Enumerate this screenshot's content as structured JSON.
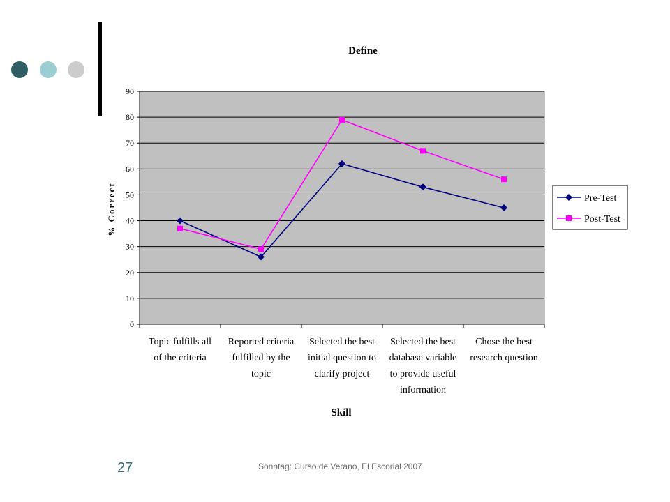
{
  "slide": {
    "number": "27",
    "footer": "Sonntag: Curso de Verano, El Escorial 2007",
    "dot_colors": [
      "#2f5f63",
      "#9ccdd2",
      "#cccccc"
    ],
    "accent_bar_color": "#000000"
  },
  "chart_data": {
    "type": "line",
    "title": "Define",
    "xlabel": "Skill",
    "ylabel": "% Correct",
    "ylim": [
      0,
      90
    ],
    "yticks": [
      0,
      10,
      20,
      30,
      40,
      50,
      60,
      70,
      80,
      90
    ],
    "grid": true,
    "legend_position": "right",
    "plot_background": "#c0c0c0",
    "categories": [
      [
        "Topic fulfills all",
        "of the criteria"
      ],
      [
        "Reported criteria",
        "fulfilled by the",
        "topic"
      ],
      [
        "Selected the best",
        "initial question to",
        "clarify project"
      ],
      [
        "Selected the best",
        "database variable",
        "to provide useful",
        "information"
      ],
      [
        "Chose the best",
        "research question"
      ]
    ],
    "series": [
      {
        "name": "Pre-Test",
        "values": [
          40,
          26,
          62,
          53,
          45
        ],
        "color": "#000080",
        "marker": "diamond"
      },
      {
        "name": "Post-Test",
        "values": [
          37,
          29,
          79,
          67,
          56
        ],
        "color": "#ff00ff",
        "marker": "square"
      }
    ]
  }
}
